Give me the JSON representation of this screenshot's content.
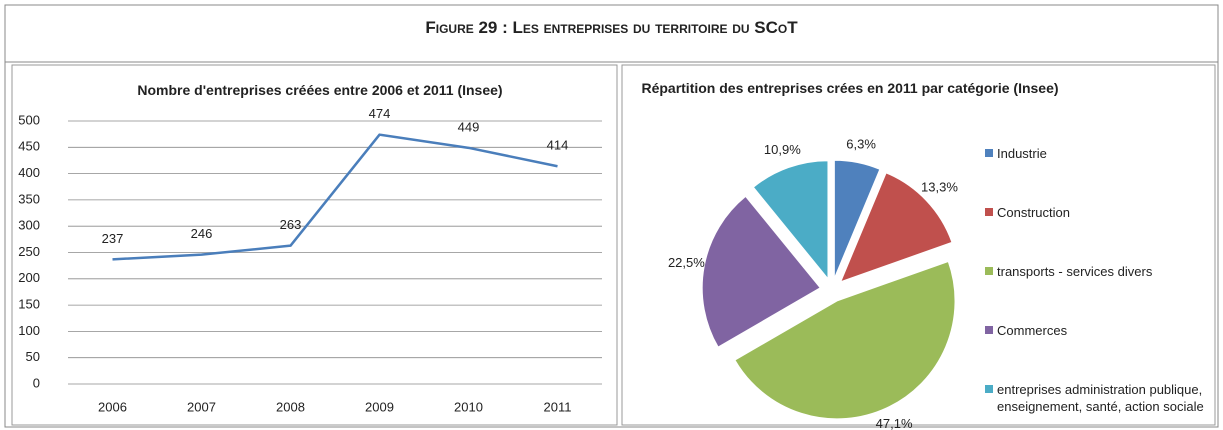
{
  "title": "Figure 29 : Les entreprises du territoire du SCoT",
  "chart_data": [
    {
      "type": "line",
      "title": "Nombre d'entreprises créées entre 2006 et 2011 (Insee)",
      "categories": [
        "2006",
        "2007",
        "2008",
        "2009",
        "2010",
        "2011"
      ],
      "values": [
        237,
        246,
        263,
        474,
        449,
        414
      ],
      "color": "#4a7ebb",
      "ylim": [
        0,
        500
      ],
      "yticks": [
        0,
        50,
        100,
        150,
        200,
        250,
        300,
        350,
        400,
        450,
        500
      ],
      "grid": true
    },
    {
      "type": "pie",
      "title": "Répartition des entreprises crées en  2011 par catégorie (Insee)",
      "categories": [
        "Industrie",
        "Construction",
        "transports - services divers",
        "Commerces",
        "entreprises administration publique, enseignement, santé, action sociale"
      ],
      "values": [
        6.3,
        13.3,
        47.1,
        22.5,
        10.9
      ],
      "value_labels": [
        "6,3%",
        "13,3%",
        "47,1%",
        "22,5%",
        "10,9%"
      ],
      "colors": [
        "#4f81bd",
        "#c0504d",
        "#9bbb59",
        "#8064a2",
        "#4bacc6"
      ],
      "legend": "right"
    }
  ]
}
